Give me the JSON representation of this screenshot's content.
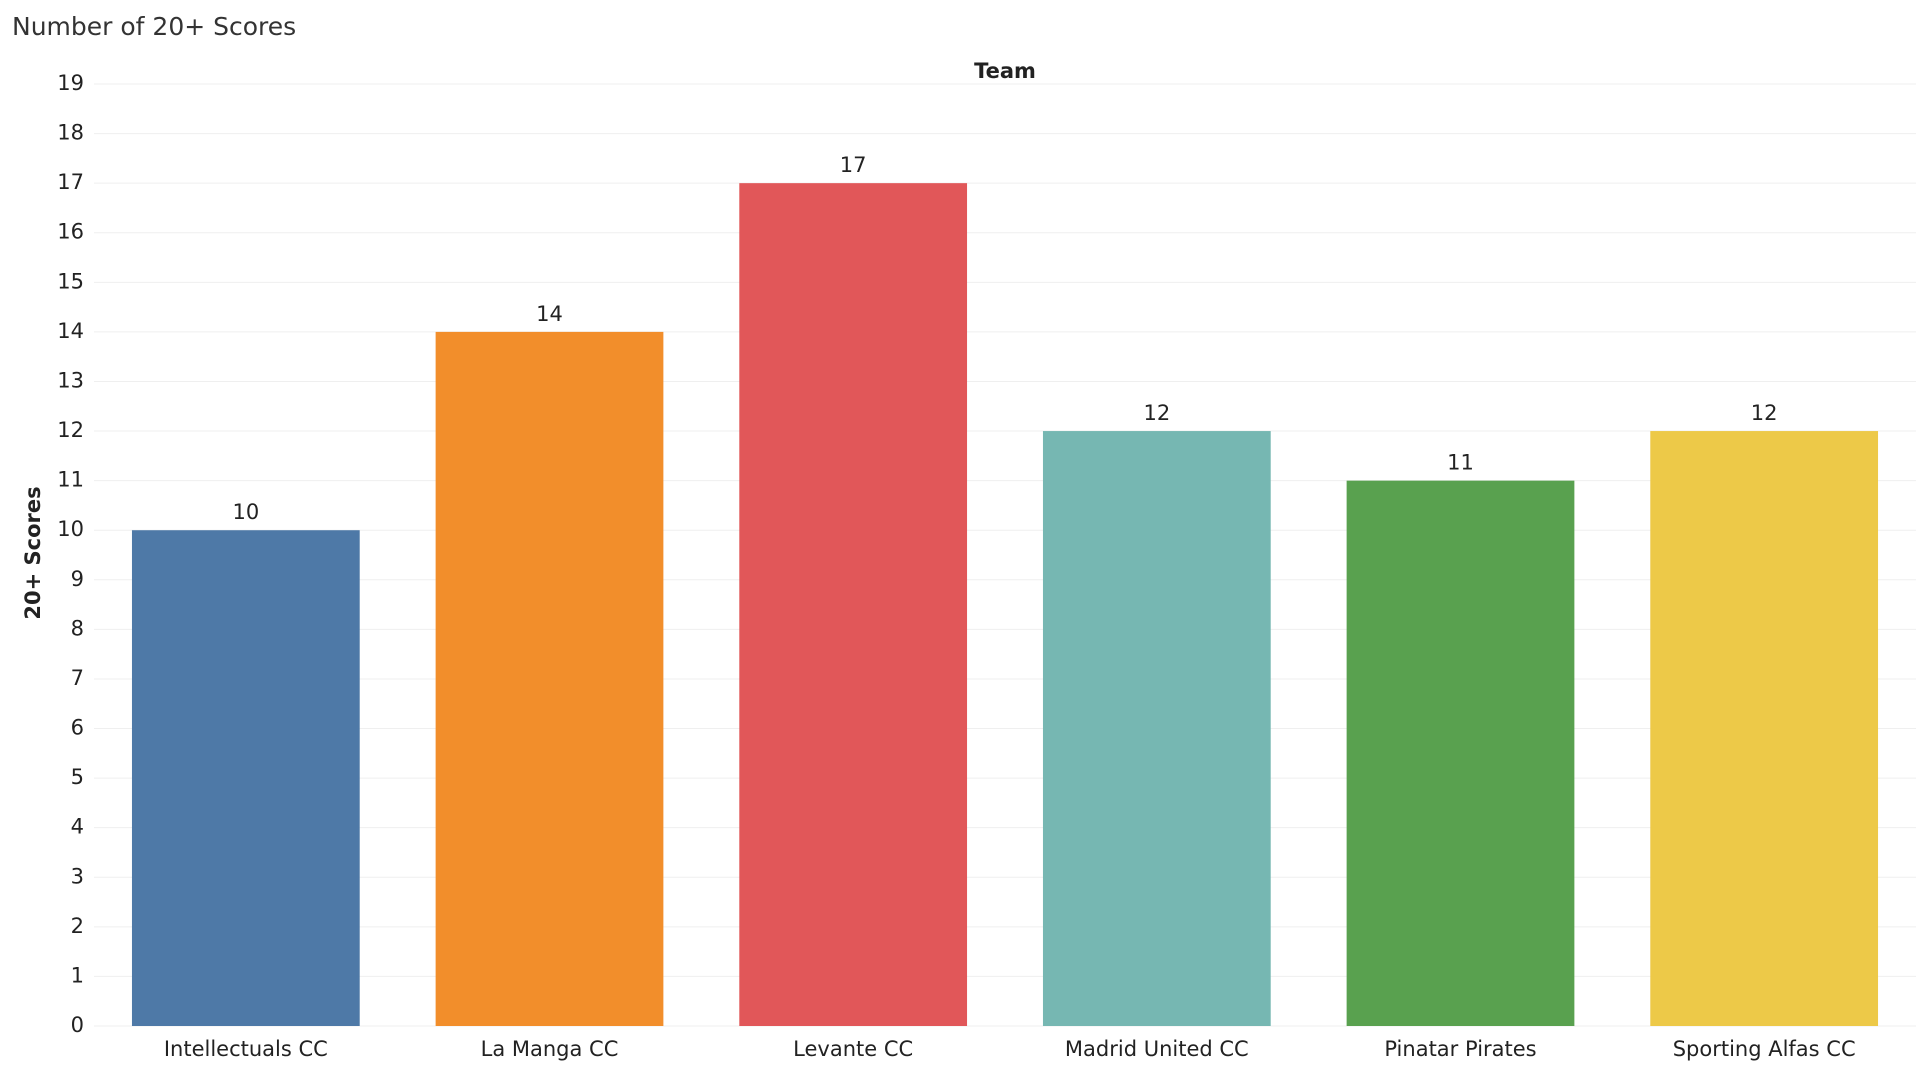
{
  "chart_data": {
    "type": "bar",
    "title": "Number of 20+ Scores",
    "x_label": "Team",
    "y_label": "20+ Scores",
    "categories": [
      "Intellectuals CC",
      "La Manga CC",
      "Levante CC",
      "Madrid United CC",
      "Pinatar Pirates",
      "Sporting Alfas CC"
    ],
    "values": [
      10,
      14,
      17,
      12,
      11,
      12
    ],
    "colors": [
      "#4e79a7",
      "#f28e2b",
      "#e15759",
      "#76b7b2",
      "#59a14f",
      "#edc948"
    ],
    "ylim": [
      0,
      19
    ],
    "yticks": [
      0,
      1,
      2,
      3,
      4,
      5,
      6,
      7,
      8,
      9,
      10,
      11,
      12,
      13,
      14,
      15,
      16,
      17,
      18,
      19
    ],
    "grid": true
  }
}
